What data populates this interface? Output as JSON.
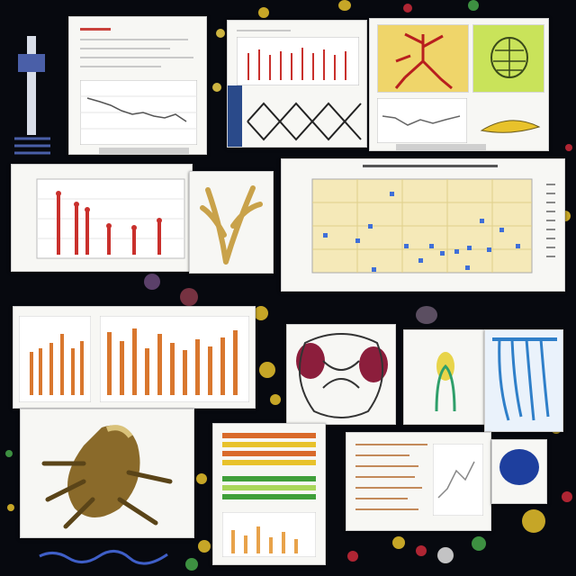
{
  "scene": {
    "colors": {
      "background": "#07090f",
      "paper": "#f7f7f4",
      "plot_yellow": "#f5e9b8",
      "bar_red": "#c9302c",
      "bar_orange": "#d9772e",
      "marker_blue": "#3f6fd8",
      "sketch_yellow": "#e8d44a",
      "sketch_lime": "#b7df3c",
      "blue_sketch": "#2f7fc9",
      "maroon": "#8c1e3c"
    },
    "icons": [
      "branching-root-sketch",
      "tree-branch-sketch",
      "blue-stem-sketch",
      "seed-pod-sketch"
    ]
  }
}
